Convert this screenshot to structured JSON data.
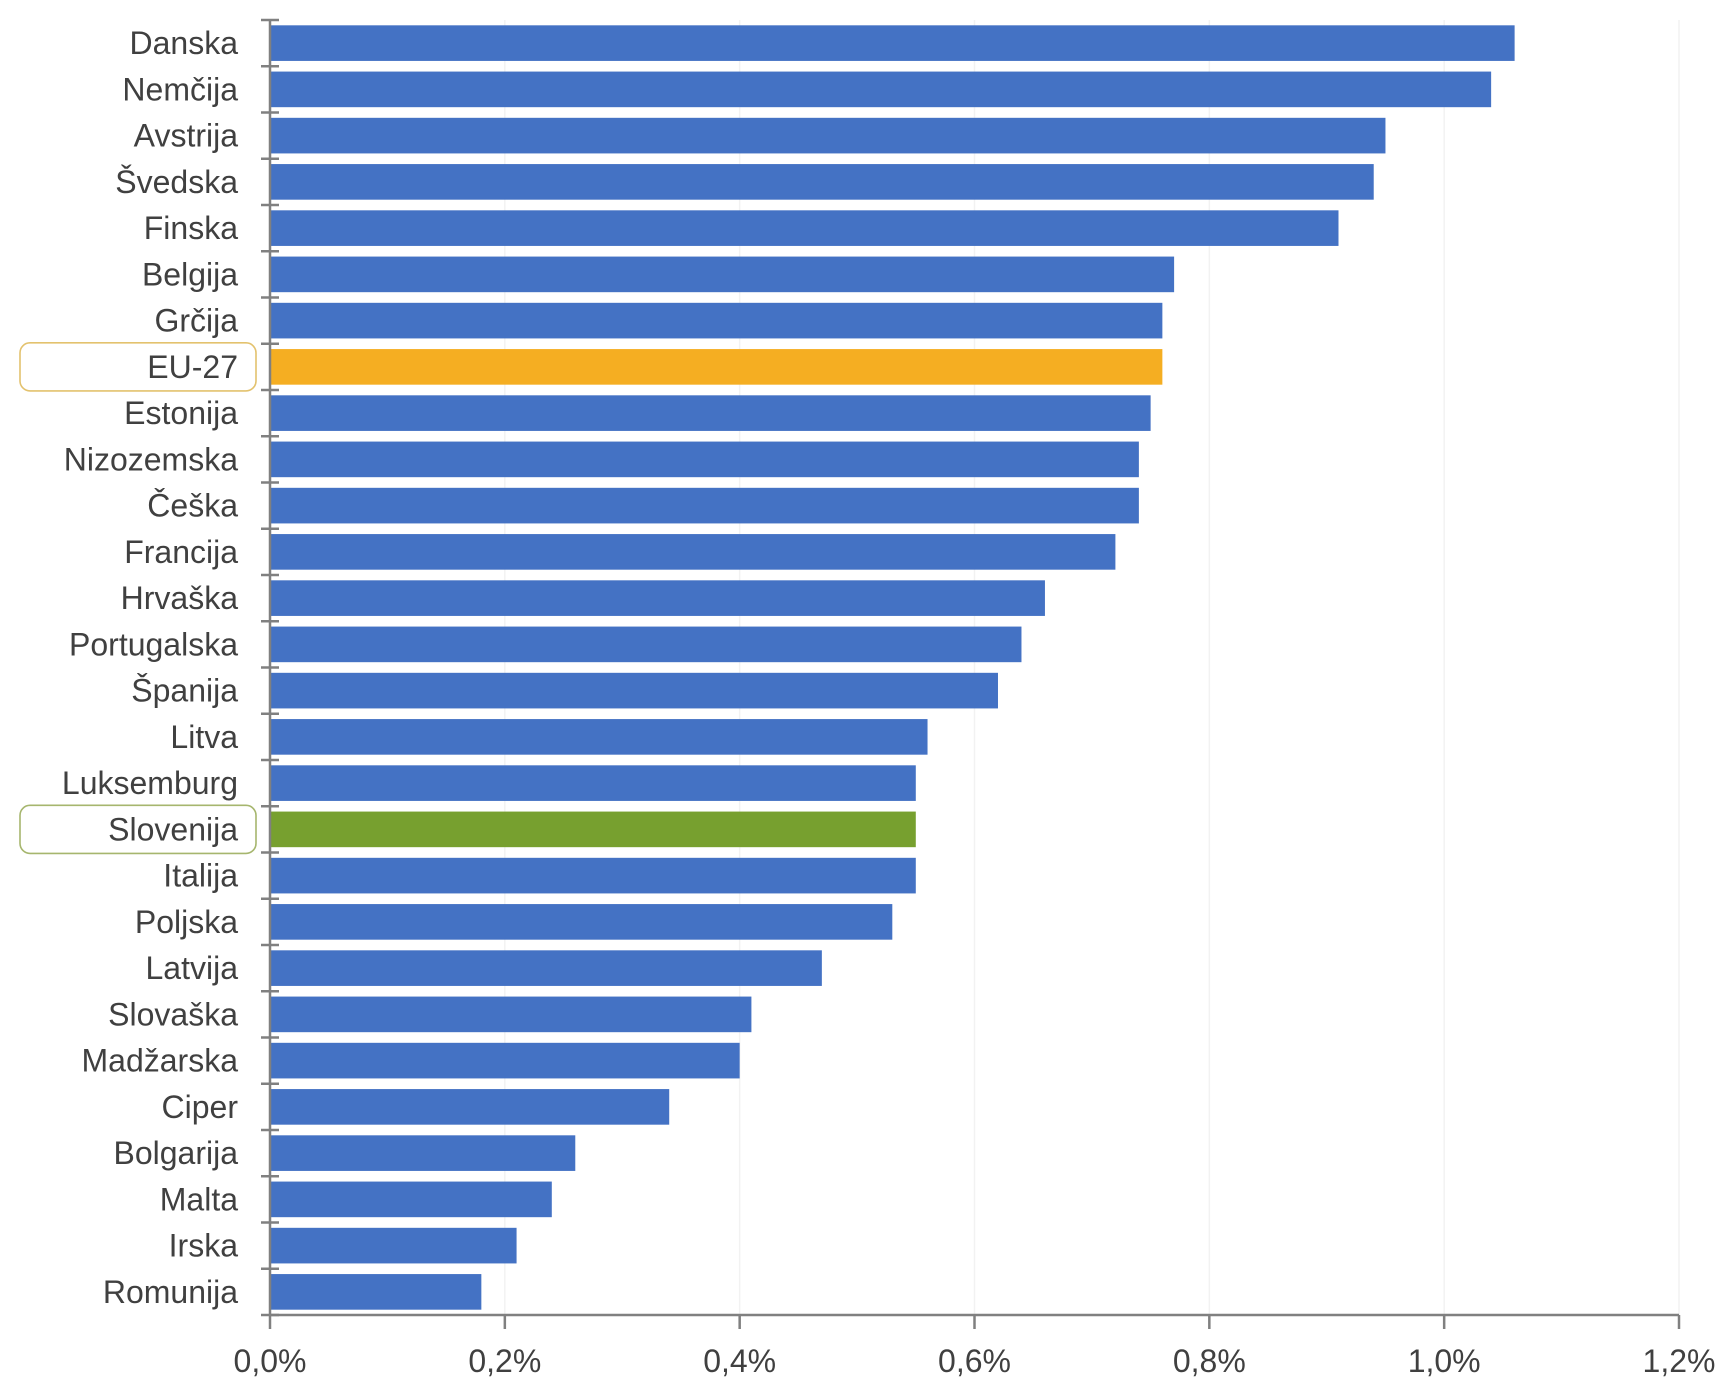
{
  "chart_data": {
    "type": "bar",
    "orientation": "horizontal",
    "categories": [
      "Danska",
      "Nemčija",
      "Avstrija",
      "Švedska",
      "Finska",
      "Belgija",
      "Grčija",
      "EU-27",
      "Estonija",
      "Nizozemska",
      "Češka",
      "Francija",
      "Hrvaška",
      "Portugalska",
      "Španija",
      "Litva",
      "Luksemburg",
      "Slovenija",
      "Italija",
      "Poljska",
      "Latvija",
      "Slovaška",
      "Madžarska",
      "Ciper",
      "Bolgarija",
      "Malta",
      "Irska",
      "Romunija"
    ],
    "values": [
      1.06,
      1.04,
      0.95,
      0.94,
      0.91,
      0.77,
      0.76,
      0.76,
      0.75,
      0.74,
      0.74,
      0.72,
      0.66,
      0.64,
      0.62,
      0.56,
      0.55,
      0.55,
      0.55,
      0.53,
      0.47,
      0.41,
      0.4,
      0.34,
      0.26,
      0.24,
      0.21,
      0.18
    ],
    "x_ticks": [
      "0,0%",
      "0,2%",
      "0,4%",
      "0,6%",
      "0,8%",
      "1,0%",
      "1,2%"
    ],
    "xlim": [
      0,
      1.2
    ],
    "x_unit": "%",
    "title": "",
    "xlabel": "",
    "ylabel": "",
    "grid": "vertical, faint",
    "legend": "none",
    "highlighted": [
      {
        "category": "EU-27",
        "color": "#F5AE22",
        "outline": "#E3C26E"
      },
      {
        "category": "Slovenija",
        "color": "#77A02F",
        "outline": "#A6B66E"
      }
    ],
    "colors": {
      "default_bar": "#4472C4",
      "axis": "#808080",
      "grid": "#F2F2F2",
      "text": "#404040"
    }
  }
}
